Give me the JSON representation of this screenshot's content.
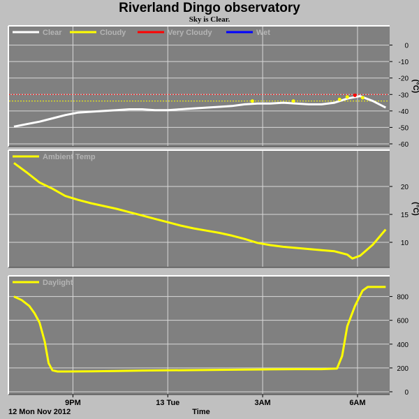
{
  "title": "Riverland Dingo observatory",
  "subtitle": "Sky is Clear.",
  "chart_data": [
    {
      "type": "line",
      "panel": "sky",
      "ylabel": "(°C)",
      "ylim": [
        -60,
        10
      ],
      "yticks": [
        0,
        -10,
        -20,
        -30,
        -40,
        -50,
        -60
      ],
      "xlim": [
        0,
        14.6
      ],
      "threshold_lines": [
        {
          "name": "Very Cloudy",
          "y": -30,
          "color": "#ff0000"
        },
        {
          "name": "Cloudy",
          "y": -34,
          "color": "#ffff00"
        }
      ],
      "legend": [
        {
          "label": "Clear",
          "color": "#ffffff"
        },
        {
          "label": "Cloudy",
          "color": "#ffff00"
        },
        {
          "label": "Very Cloudy",
          "color": "#ff0000"
        },
        {
          "label": "Wet",
          "color": "#0000ff"
        }
      ],
      "series": [
        {
          "name": "Clear",
          "color": "#ffffff",
          "x": [
            0,
            0.5,
            1,
            1.5,
            2,
            2.5,
            3,
            3.5,
            4,
            4.5,
            5,
            5.5,
            6,
            6.5,
            7,
            7.5,
            8,
            8.5,
            9,
            9.5,
            10,
            10.5,
            11,
            11.5,
            12,
            12.5,
            13,
            13.5,
            14,
            14.5
          ],
          "values": [
            -49.5,
            -48,
            -46.5,
            -44.5,
            -42.5,
            -41,
            -40.5,
            -40,
            -39.5,
            -39,
            -39,
            -39.5,
            -39.5,
            -39,
            -38.5,
            -38,
            -37.5,
            -37,
            -36,
            -35.5,
            -35.5,
            -35,
            -35.5,
            -36,
            -36,
            -35,
            -32.5,
            -31,
            -34,
            -38
          ]
        }
      ],
      "markers": [
        {
          "x": 9.3,
          "y": -34,
          "state": "Cloudy",
          "color": "#ffff00"
        },
        {
          "x": 10.9,
          "y": -34,
          "state": "Cloudy",
          "color": "#ffff00"
        },
        {
          "x": 12.7,
          "y": -33,
          "state": "Cloudy",
          "color": "#ffff00"
        },
        {
          "x": 13.0,
          "y": -31.5,
          "state": "Cloudy",
          "color": "#ffff00"
        },
        {
          "x": 13.3,
          "y": -30.5,
          "state": "Very Cloudy",
          "color": "#ff0000"
        },
        {
          "x": 13.6,
          "y": -32,
          "state": "Cloudy",
          "color": "#ffff00"
        }
      ]
    },
    {
      "type": "line",
      "panel": "ambient",
      "ylabel": "(°C)",
      "ylim": [
        6,
        26
      ],
      "yticks": [
        20,
        15,
        10
      ],
      "xlim": [
        0,
        14.6
      ],
      "legend": [
        {
          "label": "Ambient Temp",
          "color": "#ffff00"
        }
      ],
      "series": [
        {
          "name": "Ambient Temp",
          "color": "#ffff00",
          "x": [
            0,
            0.5,
            1,
            1.5,
            2,
            2.5,
            3,
            3.5,
            4,
            4.5,
            5,
            5.5,
            6,
            6.5,
            7,
            7.5,
            8,
            8.5,
            9,
            9.5,
            10,
            10.5,
            11,
            11.5,
            12,
            12.5,
            13,
            13.2,
            13.5,
            14,
            14.5
          ],
          "values": [
            24.2,
            22.5,
            20.7,
            19.6,
            18.3,
            17.6,
            17.0,
            16.5,
            16.0,
            15.4,
            14.8,
            14.2,
            13.6,
            13.0,
            12.5,
            12.1,
            11.7,
            11.2,
            10.6,
            9.9,
            9.5,
            9.2,
            9.0,
            8.8,
            8.6,
            8.4,
            7.8,
            7.1,
            7.6,
            9.6,
            12.3
          ]
        }
      ]
    },
    {
      "type": "line",
      "panel": "daylight",
      "ylim": [
        0,
        950
      ],
      "yticks": [
        800,
        600,
        400,
        200,
        0
      ],
      "xlim": [
        0,
        14.6
      ],
      "xticks": [
        {
          "x": 2.3,
          "label": "9PM"
        },
        {
          "x": 6.0,
          "label": "13 Tue"
        },
        {
          "x": 9.7,
          "label": "3AM"
        },
        {
          "x": 13.4,
          "label": "6AM"
        }
      ],
      "xlabel": "Time",
      "xlabel_left": "12 Mon Nov 2012",
      "legend": [
        {
          "label": "Daylight",
          "color": "#ffff00"
        }
      ],
      "series": [
        {
          "name": "Daylight",
          "color": "#ffff00",
          "x": [
            0,
            0.3,
            0.6,
            0.8,
            1.0,
            1.2,
            1.35,
            1.5,
            1.7,
            2,
            3,
            4,
            5,
            6,
            7,
            8,
            9,
            10,
            11,
            12,
            12.6,
            12.8,
            13.0,
            13.3,
            13.6,
            13.8,
            14.0,
            14.5
          ],
          "values": [
            800,
            770,
            720,
            660,
            580,
            420,
            240,
            180,
            170,
            170,
            172,
            175,
            178,
            180,
            182,
            184,
            186,
            188,
            190,
            190,
            195,
            300,
            550,
            720,
            850,
            880,
            880,
            880
          ]
        }
      ]
    }
  ]
}
